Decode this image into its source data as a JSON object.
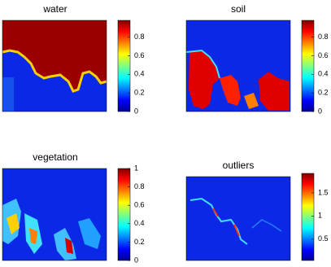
{
  "panels": [
    {
      "title": "water",
      "clim": [
        0,
        0.98
      ],
      "cticks": [
        0,
        0.2,
        0.4,
        0.6,
        0.8
      ]
    },
    {
      "title": "soil",
      "clim": [
        0,
        0.98
      ],
      "cticks": [
        0,
        0.2,
        0.4,
        0.6,
        0.8
      ]
    },
    {
      "title": "vegetation",
      "clim": [
        0,
        1
      ],
      "cticks": [
        0,
        0.2,
        0.4,
        0.6,
        0.8,
        1
      ]
    },
    {
      "title": "outliers",
      "clim": [
        0.04,
        1.92
      ],
      "cticks": [
        0.5,
        1,
        1.5
      ]
    }
  ]
}
